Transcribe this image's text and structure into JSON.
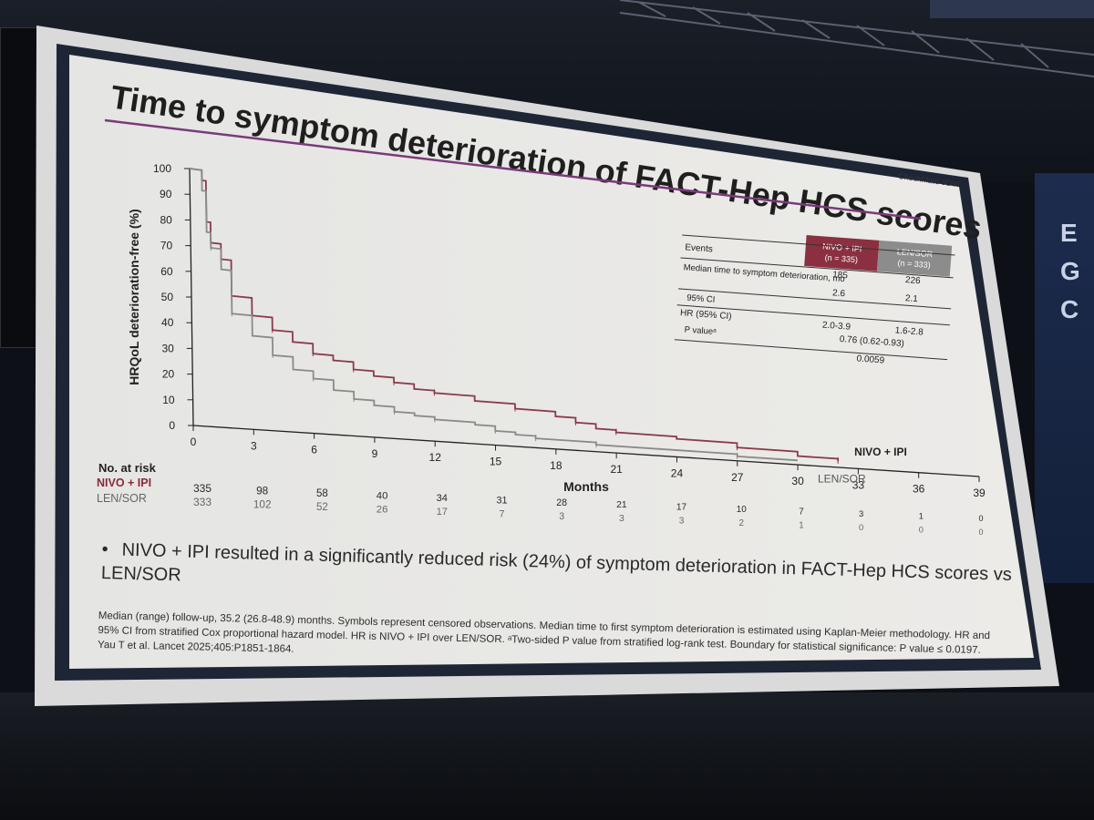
{
  "slide": {
    "title": "Time to symptom deterioration of FACT-Hep HCS scores",
    "trial_tag": "CheckMate 9DW",
    "bullet": "NIVO + IPI resulted in a significantly reduced risk (24%) of symptom deterioration in FACT-Hep HCS scores vs LEN/SOR",
    "footnote": "Median (range) follow-up, 35.2 (26.8-48.9) months. Symbols represent censored observations. Median time to first symptom deterioration is estimated using Kaplan-Meier methodology. HR and 95% CI from stratified Cox proportional hazard model. HR is NIVO + IPI over LEN/SOR. ᵃTwo-sided P value from stratified log-rank test. Boundary for statistical significance: P value ≤ 0.0197. Yau T et al. Lancet 2025;405:P1851-1864."
  },
  "stats_table": {
    "col1_header": [
      "NIVO + IPI",
      "(n = 335)"
    ],
    "col2_header": [
      "LEN/SOR",
      "(n = 333)"
    ],
    "rows": [
      {
        "label": "Events",
        "v1": "185",
        "v2": "226"
      },
      {
        "label": "Median time to symptom deterioration, mo",
        "v1": "2.6",
        "v2": "2.1"
      },
      {
        "label": "95% CI",
        "v1": "2.0-3.9",
        "v2": "1.6-2.8"
      },
      {
        "label": "HR (95% CI)",
        "v": "0.76 (0.62-0.93)"
      },
      {
        "label": "P valueᵃ",
        "v": "0.0059"
      }
    ]
  },
  "risk_table": {
    "header": "No. at risk",
    "rows": [
      {
        "label": "NIVO + IPI",
        "values": [
          "335",
          "98",
          "58",
          "40",
          "34",
          "31",
          "28",
          "21",
          "17",
          "10",
          "7",
          "3",
          "1",
          "0"
        ]
      },
      {
        "label": "LEN/SOR",
        "values": [
          "333",
          "102",
          "52",
          "26",
          "17",
          "7",
          "3",
          "3",
          "3",
          "2",
          "1",
          "0",
          "0",
          "0"
        ]
      }
    ]
  },
  "chart_data": {
    "type": "line",
    "xlabel": "Months",
    "ylabel": "HRQoL deterioration-free (%)",
    "xticks": [
      "0",
      "3",
      "6",
      "9",
      "12",
      "15",
      "18",
      "21",
      "24",
      "27",
      "30",
      "33",
      "36",
      "39"
    ],
    "yticks": [
      "0",
      "10",
      "20",
      "30",
      "40",
      "50",
      "60",
      "70",
      "80",
      "90",
      "100"
    ],
    "xlim": [
      0,
      39
    ],
    "ylim": [
      0,
      100
    ],
    "series": [
      {
        "name": "NIVO + IPI",
        "color": "#8a3a4a",
        "x": [
          0,
          0.6,
          0.8,
          1,
          1.5,
          2,
          3,
          4,
          5,
          6,
          7,
          8,
          9,
          10,
          11,
          12,
          14,
          16,
          18,
          19,
          20,
          21,
          24,
          27,
          30,
          32
        ],
        "y": [
          100,
          96,
          80,
          72,
          66,
          52,
          45,
          40,
          36,
          32,
          30,
          27,
          25,
          23,
          21,
          20,
          18,
          16,
          14,
          12,
          10,
          9,
          8,
          6,
          4,
          3
        ]
      },
      {
        "name": "LEN/SOR",
        "color": "#8a8a8a",
        "x": [
          0,
          0.6,
          0.8,
          1,
          1.5,
          2,
          3,
          4,
          5,
          6,
          7,
          8,
          9,
          10,
          11,
          12,
          14,
          15,
          16,
          17,
          18,
          20,
          24,
          27,
          30
        ],
        "y": [
          100,
          92,
          76,
          70,
          62,
          45,
          37,
          30,
          25,
          22,
          18,
          15,
          13,
          11,
          10,
          9,
          8,
          6,
          5,
          4,
          4,
          3,
          3,
          2,
          2
        ]
      }
    ]
  }
}
